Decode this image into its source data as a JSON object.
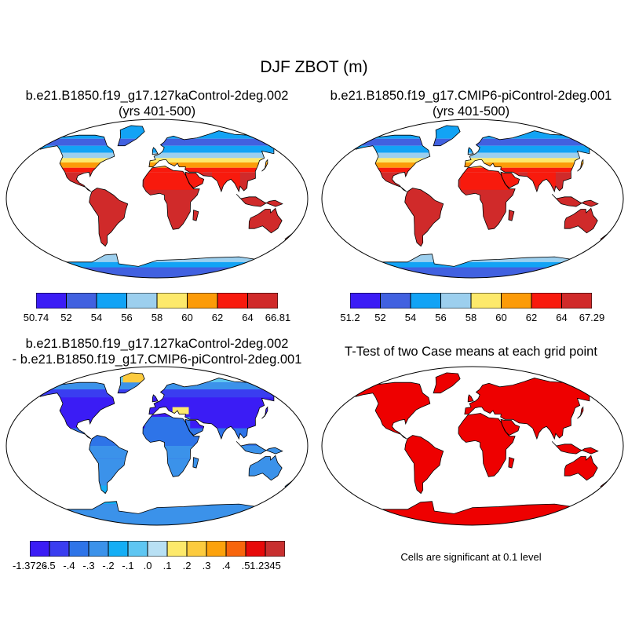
{
  "figure": {
    "title": "DJF ZBOT (m)"
  },
  "panels": [
    {
      "id": "case1",
      "title_line1": "b.e21.B1850.f19_g17.127kaControl-2deg.002",
      "title_line2": "(yrs 401-500)",
      "colorbar": {
        "colors": [
          "#3b1cf5",
          "#4161e0",
          "#12a3f5",
          "#9ccfee",
          "#fde96b",
          "#fc9b08",
          "#f81a0d",
          "#d02a2a"
        ],
        "labels": [
          "50.74",
          "52",
          "54",
          "56",
          "58",
          "60",
          "62",
          "64",
          "66.81"
        ]
      }
    },
    {
      "id": "case2",
      "title_line1": "b.e21.B1850.f19_g17.CMIP6-piControl-2deg.001",
      "title_line2": "(yrs 401-500)",
      "colorbar": {
        "colors": [
          "#3b1cf5",
          "#4161e0",
          "#12a3f5",
          "#9ccfee",
          "#fde96b",
          "#fc9b08",
          "#f81a0d",
          "#d02a2a"
        ],
        "labels": [
          "51.2",
          "52",
          "54",
          "56",
          "58",
          "60",
          "62",
          "64",
          "67.29"
        ]
      }
    },
    {
      "id": "difference",
      "title_line1": "b.e21.B1850.f19_g17.127kaControl-2deg.002",
      "title_line2": "- b.e21.B1850.f19_g17.CMIP6-piControl-2deg.001",
      "colorbar": {
        "colors": [
          "#3b1cf5",
          "#3a3df0",
          "#2e74e8",
          "#3b92ea",
          "#14aef5",
          "#5ec6f2",
          "#b8e0f4",
          "#fde96b",
          "#fccb3e",
          "#fca20c",
          "#f8650c",
          "#e70a0a",
          "#c83030"
        ],
        "labels": [
          "-1.3726",
          "-.5",
          "-.4",
          "-.3",
          "-.2",
          "-.1",
          ".0",
          ".1",
          ".2",
          ".3",
          ".4",
          ".5",
          "1.2345"
        ]
      }
    },
    {
      "id": "ttest",
      "title_line1": "T-Test of two Case means at each grid point",
      "note": "Cells are significant at 0.1 level",
      "fill_color": "#ee0000"
    }
  ]
}
